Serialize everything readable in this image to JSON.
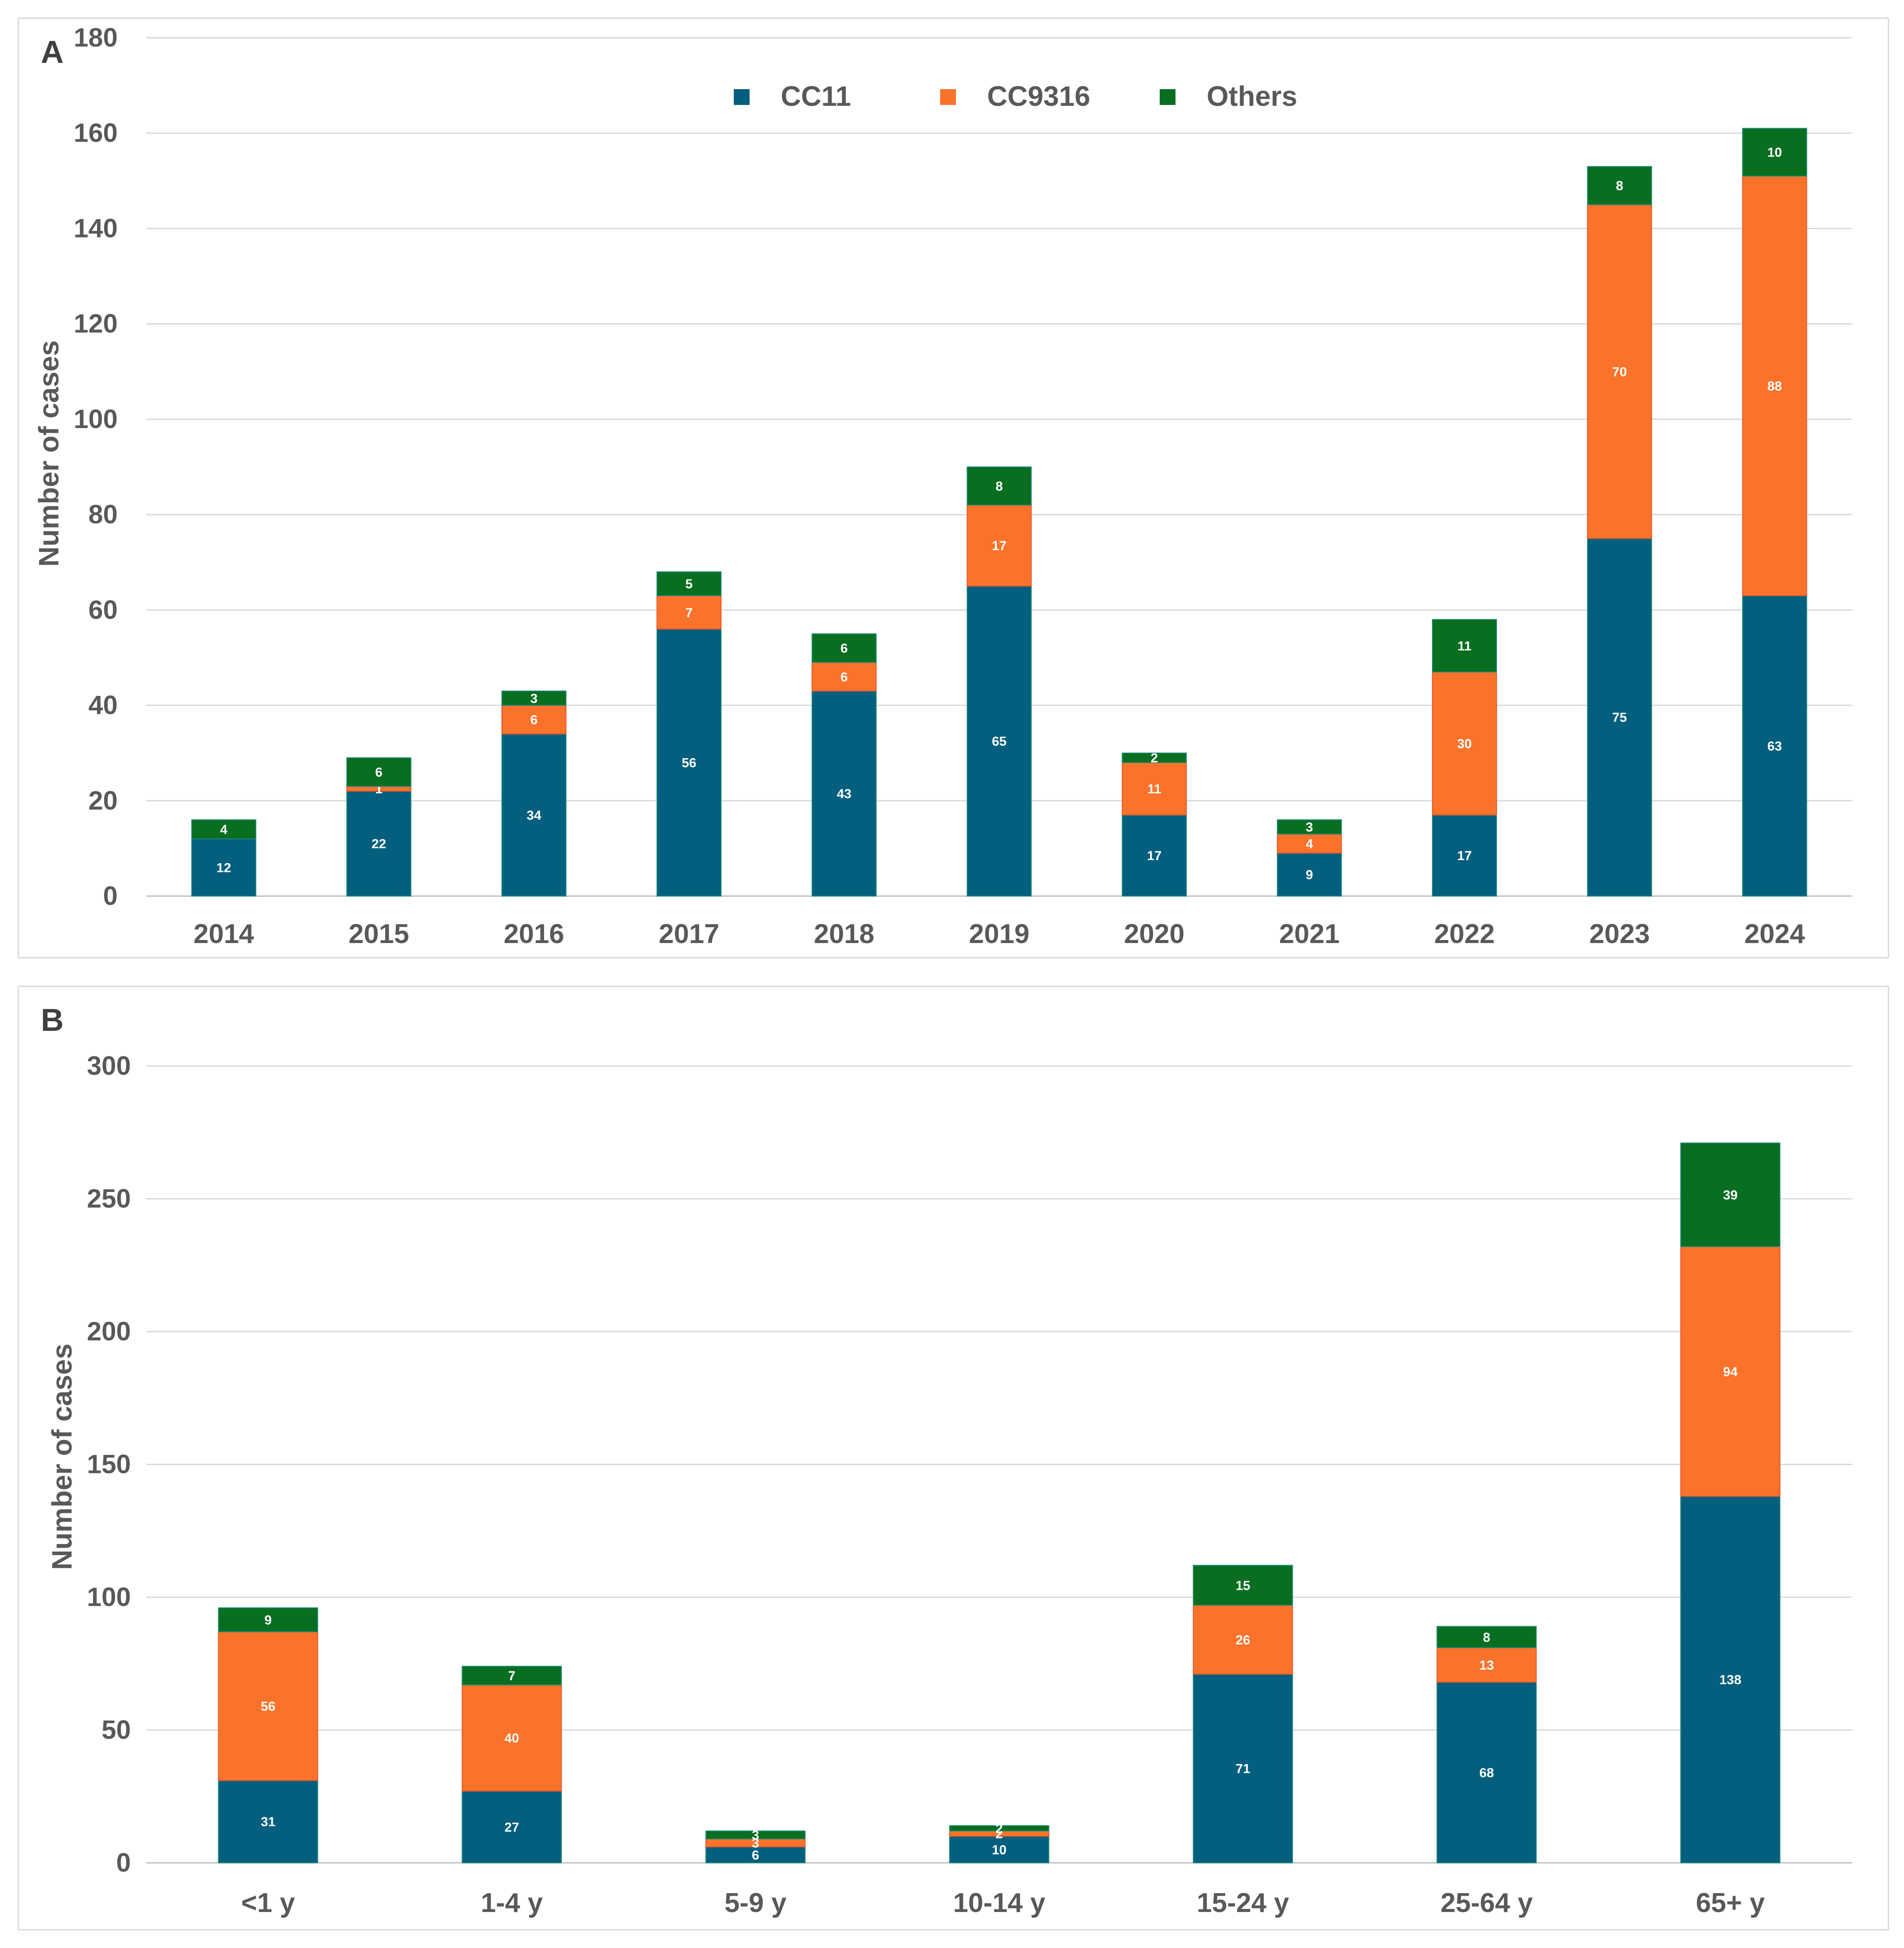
{
  "colors": {
    "cc11": "#045f7f",
    "cc9316": "#fb732a",
    "others": "#0a6e20",
    "axis_text": "#595959",
    "grid": "#d9d9d9"
  },
  "chart_data": [
    {
      "type": "bar",
      "stacked": true,
      "panel_label": "A",
      "ylabel": "Number of cases",
      "xlabel": "",
      "ylim": [
        0,
        180
      ],
      "yticks": [
        0,
        20,
        40,
        60,
        80,
        100,
        120,
        140,
        160,
        180
      ],
      "grid": true,
      "legend_position": "top-center",
      "categories": [
        "2014",
        "2015",
        "2016",
        "2017",
        "2018",
        "2019",
        "2020",
        "2021",
        "2022",
        "2023",
        "2024"
      ],
      "series": [
        {
          "name": "CC11",
          "values": [
            12,
            22,
            34,
            56,
            43,
            65,
            17,
            9,
            17,
            75,
            63
          ]
        },
        {
          "name": "CC9316",
          "values": [
            0,
            1,
            6,
            7,
            6,
            17,
            11,
            4,
            30,
            70,
            88
          ]
        },
        {
          "name": "Others",
          "values": [
            4,
            6,
            3,
            5,
            6,
            8,
            2,
            3,
            11,
            8,
            10
          ]
        }
      ]
    },
    {
      "type": "bar",
      "stacked": true,
      "panel_label": "B",
      "ylabel": "Number of cases",
      "xlabel": "",
      "ylim": [
        0,
        300
      ],
      "yticks": [
        0,
        50,
        100,
        150,
        200,
        250,
        300
      ],
      "grid": true,
      "categories": [
        "<1 y",
        "1-4 y",
        "5-9 y",
        "10-14 y",
        "15-24 y",
        "25-64 y",
        "65+ y"
      ],
      "series": [
        {
          "name": "CC11",
          "values": [
            31,
            27,
            6,
            10,
            71,
            68,
            138
          ]
        },
        {
          "name": "CC9316",
          "values": [
            56,
            40,
            3,
            2,
            26,
            13,
            94
          ]
        },
        {
          "name": "Others",
          "values": [
            9,
            7,
            3,
            2,
            15,
            8,
            39
          ]
        }
      ]
    }
  ]
}
